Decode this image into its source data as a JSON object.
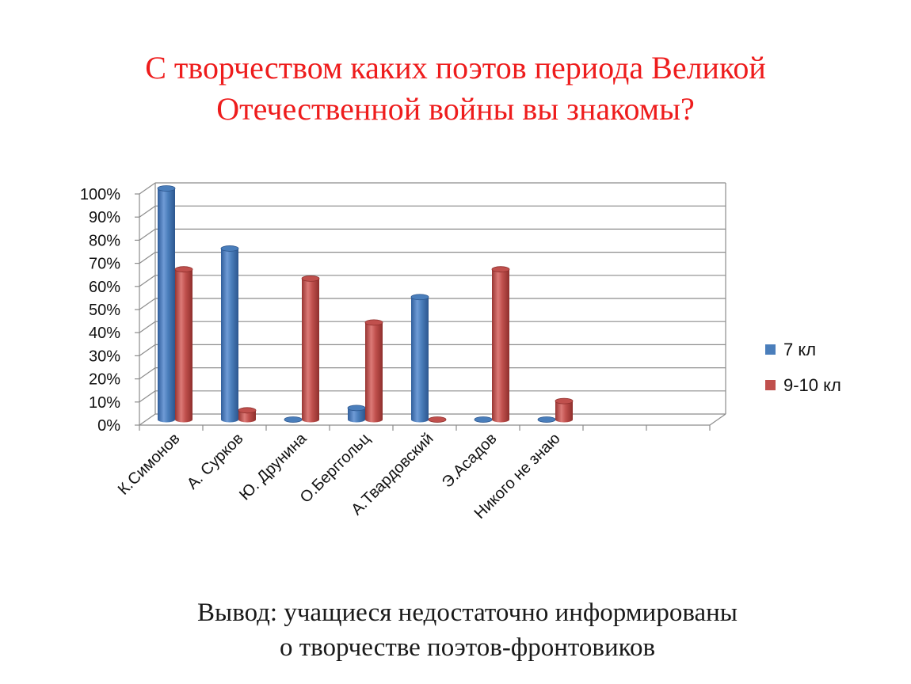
{
  "title": {
    "line1": "С творчеством каких поэтов периода Великой",
    "line2": "Отечественной войны вы знакомы?"
  },
  "conclusion": {
    "line1": "Вывод:  учащиеся недостаточно информированы",
    "line2": "о  творчестве поэтов-фронтовиков"
  },
  "chart_data": {
    "type": "bar",
    "title": "",
    "xlabel": "",
    "ylabel": "",
    "ylim": [
      0,
      100
    ],
    "y_ticks": [
      "0%",
      "10%",
      "20%",
      "30%",
      "40%",
      "50%",
      "60%",
      "70%",
      "80%",
      "90%",
      "100%"
    ],
    "categories": [
      "К.Симонов",
      "А. Сурков",
      "Ю. Друнина",
      "О.Берггольц",
      "А.Твардовский",
      "Э.Асадов",
      "Никого не знаю"
    ],
    "series": [
      {
        "name": "7 кл",
        "color": "#4a7ebb",
        "values": [
          100,
          74,
          0,
          5,
          53,
          0,
          0
        ]
      },
      {
        "name": "9-10 кл",
        "color": "#c0504d",
        "values": [
          65,
          4,
          61,
          42,
          0,
          65,
          8
        ]
      }
    ],
    "grid": true,
    "legend_position": "right"
  }
}
